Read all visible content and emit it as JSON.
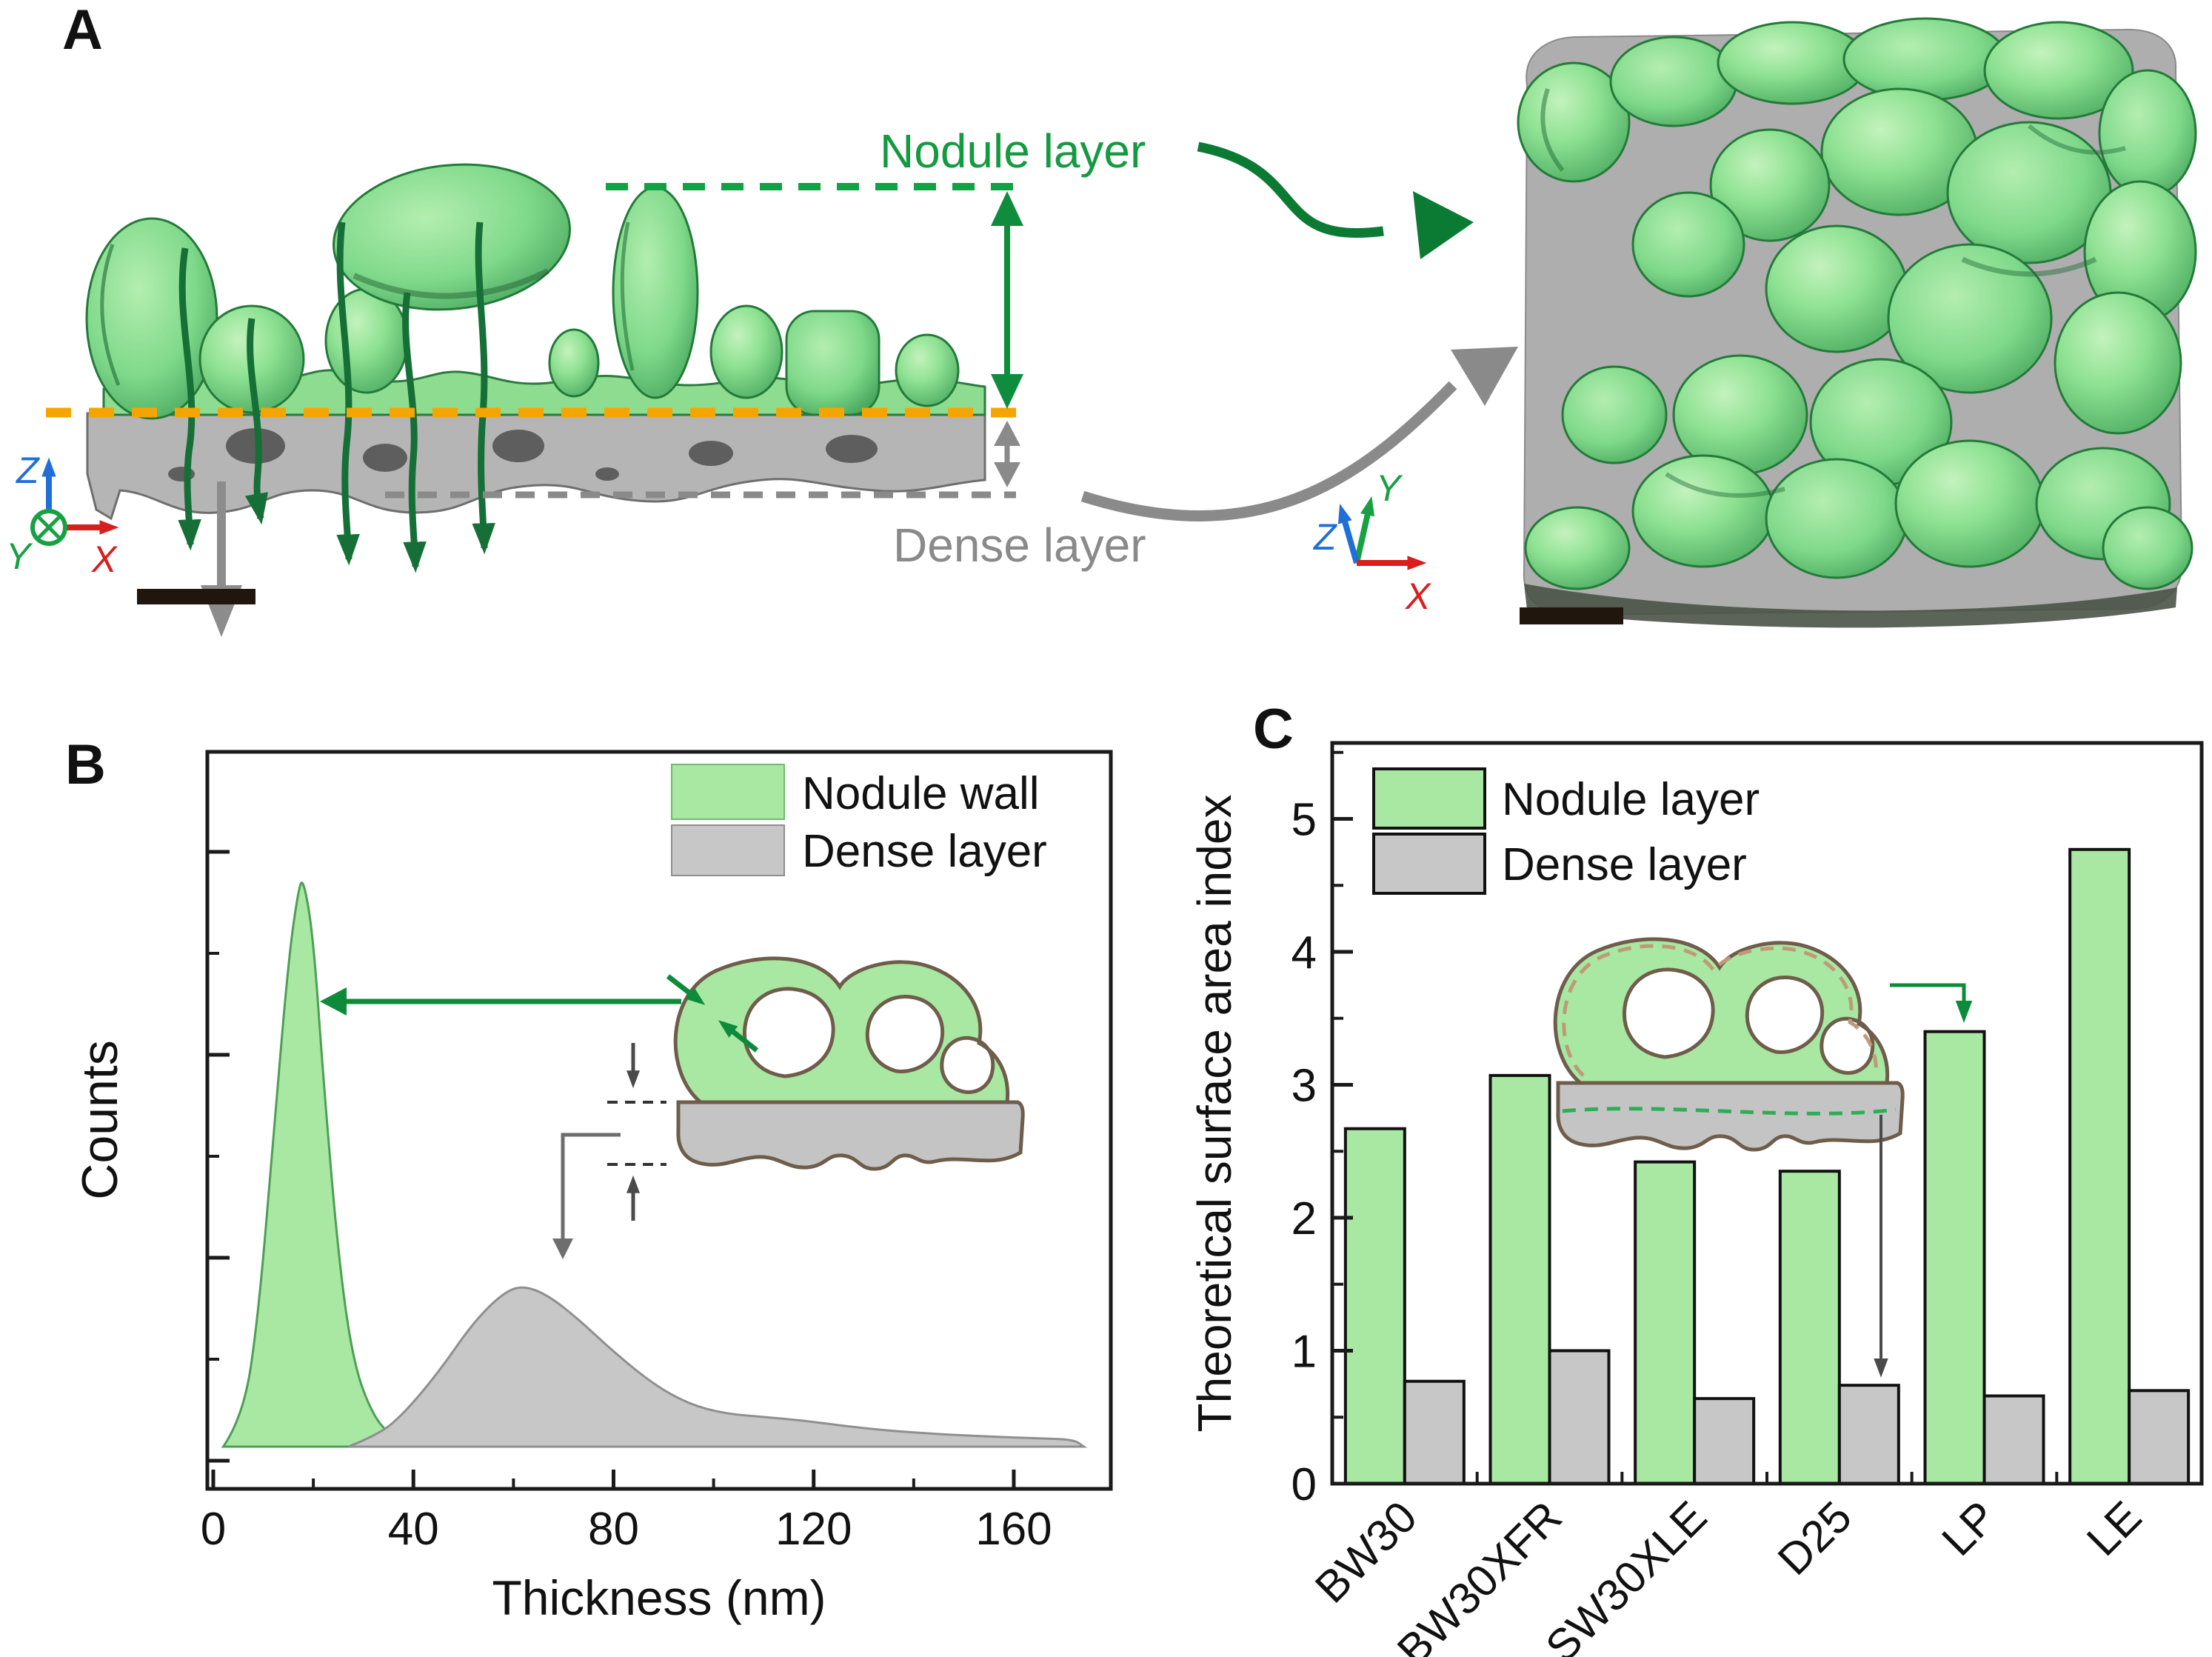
{
  "figure": {
    "panel_a_label": "A",
    "panel_b_label": "B",
    "panel_c_label": "C"
  },
  "panel_a": {
    "nodule_layer_label": "Nodule layer",
    "dense_layer_label": "Dense layer",
    "left_axes": {
      "up": "Z",
      "right": "X",
      "into_page": "Y"
    },
    "right_axes": {
      "up": "Y",
      "diagonal": "Z",
      "right": "X"
    },
    "colors": {
      "nodule_green_fill": "#8ddc90",
      "dense_gray_fill": "#b5b5b5",
      "nodule_text_green": "#149a40",
      "dense_text_gray": "#8a8a8a",
      "interface_orange_dash": "#f6a500",
      "top_green_dash": "#12a144",
      "bottom_gray_dash": "#8a8a8a",
      "axis_x_red": "#d81e1e",
      "axis_y_green": "#18a044",
      "axis_z_blue": "#1f6fd6",
      "scale_bar_black": "#20160e"
    }
  },
  "chart_data": [
    {
      "id": "panel_b_thickness_distribution",
      "type": "area",
      "title": "",
      "xlabel": "Thickness (nm)",
      "ylabel": "Counts",
      "xlim": [
        0,
        179
      ],
      "xticks_major": [
        0,
        40,
        80,
        120,
        160
      ],
      "xticks_minor": [
        20,
        60,
        100,
        140
      ],
      "grid": false,
      "legend_position": "top-right",
      "legend": [
        "Nodule wall",
        "Dense layer"
      ],
      "series": [
        {
          "name": "Nodule wall",
          "color": "#a8e8a2",
          "edge": "#4e9e57",
          "peak_nm": 18,
          "points": [
            [
              2,
              0
            ],
            [
              6,
              0.05
            ],
            [
              9,
              0.22
            ],
            [
              12,
              0.52
            ],
            [
              15,
              0.82
            ],
            [
              17,
              0.94
            ],
            [
              18,
              0.96
            ],
            [
              20,
              0.86
            ],
            [
              22,
              0.62
            ],
            [
              25,
              0.32
            ],
            [
              28,
              0.14
            ],
            [
              32,
              0.05
            ],
            [
              36,
              0.015
            ],
            [
              40,
              0
            ]
          ]
        },
        {
          "name": "Dense layer",
          "color": "#c7c7c7",
          "edge": "#8f8f8f",
          "peak_nm": 62,
          "points": [
            [
              27,
              0
            ],
            [
              33,
              0.02
            ],
            [
              38,
              0.055
            ],
            [
              45,
              0.125
            ],
            [
              52,
              0.21
            ],
            [
              58,
              0.26
            ],
            [
              62,
              0.272
            ],
            [
              67,
              0.255
            ],
            [
              73,
              0.215
            ],
            [
              80,
              0.16
            ],
            [
              88,
              0.105
            ],
            [
              95,
              0.072
            ],
            [
              102,
              0.056
            ],
            [
              110,
              0.05
            ],
            [
              118,
              0.044
            ],
            [
              126,
              0.035
            ],
            [
              135,
              0.027
            ],
            [
              145,
              0.021
            ],
            [
              155,
              0.017
            ],
            [
              165,
              0.014
            ],
            [
              172,
              0.012
            ],
            [
              174,
              0
            ]
          ]
        }
      ]
    },
    {
      "id": "panel_c_surface_area_index",
      "type": "bar",
      "title": "",
      "xlabel": "",
      "ylabel": "Theoretical surface area index",
      "ylim": [
        0,
        5.57
      ],
      "yticks": [
        0,
        1,
        2,
        3,
        4,
        5
      ],
      "ytick_minor_step": 0.5,
      "grid": false,
      "legend_position": "top-left",
      "legend": [
        "Nodule layer",
        "Dense layer"
      ],
      "categories": [
        "BW30",
        "BW30XFR",
        "SW30XLE",
        "D25",
        "LP",
        "LE"
      ],
      "series": [
        {
          "name": "Nodule layer",
          "color": "#a8e8a2",
          "values": [
            2.67,
            3.07,
            2.42,
            2.35,
            3.4,
            4.77
          ]
        },
        {
          "name": "Dense layer",
          "color": "#c7c7c7",
          "values": [
            0.77,
            1.0,
            0.64,
            0.74,
            0.66,
            0.7
          ]
        }
      ]
    }
  ]
}
